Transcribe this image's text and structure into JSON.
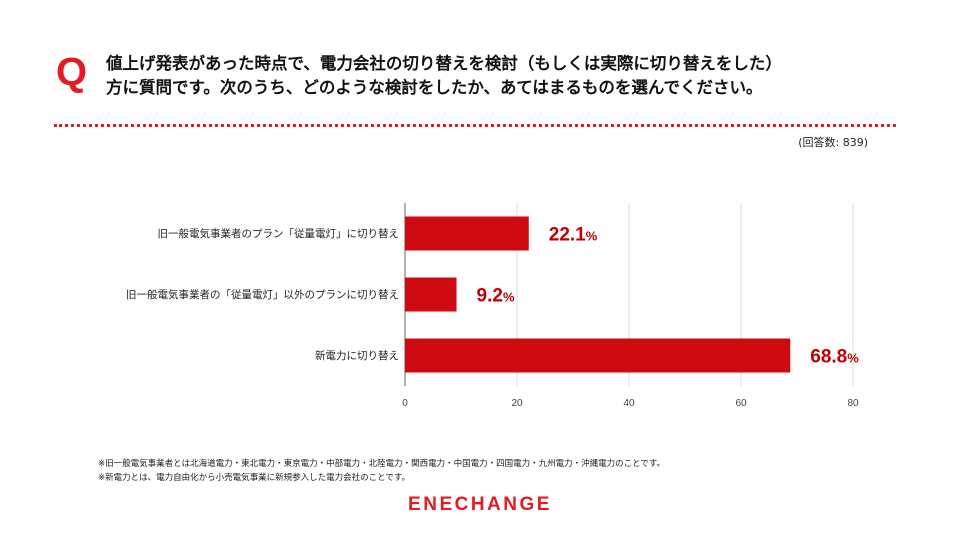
{
  "header": {
    "q_mark": "Q",
    "question_lines": [
      "値上げ発表があった時点で、電力会社の切り替えを検討（もしくは実際に切り替えをした）",
      "方に質問です。次のうち、どのような検討をしたか、あてはまるものを選んでください。"
    ],
    "respondents": "(回答数: 839)"
  },
  "chart_data": {
    "type": "bar",
    "orientation": "horizontal",
    "categories": [
      "旧一般電気事業者のプラン「従量電灯」に切り替え",
      "旧一般電気事業者の「従量電灯」以外のプランに切り替え",
      "新電力に切り替え"
    ],
    "values": [
      22.1,
      9.2,
      68.8
    ],
    "value_labels": [
      "22.1",
      "9.2",
      "68.8"
    ],
    "unit": "%",
    "xlim": [
      0,
      80
    ],
    "xticks": [
      0,
      20,
      40,
      60,
      80
    ],
    "bar_color": "#cc0a0f",
    "label_color": "#c00000",
    "grid": true
  },
  "footnotes": [
    "※旧一般電気事業者とは北海道電力・東北電力・東京電力・中部電力・北陸電力・関西電力・中国電力・四国電力・九州電力・沖縄電力のことです。",
    "※新電力とは、電力自由化から小売電気事業に新規参入した電力会社のことです。"
  ],
  "logo": "ENECHANGE"
}
